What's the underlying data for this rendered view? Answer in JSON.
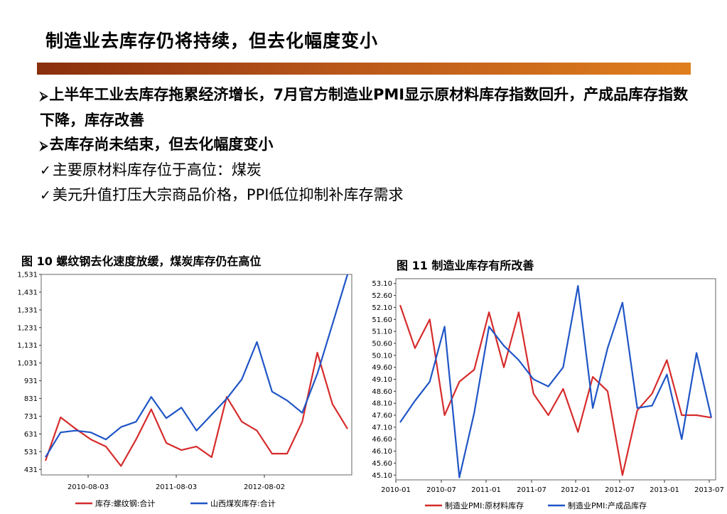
{
  "slide": {
    "title": "制造业去库存仍将持续，但去化幅度变小",
    "bullets": [
      {
        "mark": "⮚",
        "text": "上半年工业去库存拖累经济增长，7月官方制造业PMI显示原材料库存指数回升，产成品库存指数下降，库存改善",
        "bold": true
      },
      {
        "mark": "⮚",
        "text": "去库存尚未结束，但去化幅度变小",
        "bold": true
      },
      {
        "mark": "✓",
        "text": "主要原材料库存位于高位：煤炭",
        "bold": false
      },
      {
        "mark": "✓",
        "text": "美元升值打压大宗商品价格，PPI低位抑制补库存需求",
        "bold": false
      }
    ],
    "colors": {
      "red": "#d62b2b",
      "blue": "#1f55c6",
      "bar_start": "#8a2f0c",
      "bar_end": "#e07f1e"
    }
  },
  "chart_data": [
    {
      "type": "line",
      "title": "图 10 螺纹钢去化速度放缓，煤炭库存仍在高位",
      "x": [
        "2010-03",
        "2010-05",
        "2010-07",
        "2010-09",
        "2010-11",
        "2011-01",
        "2011-03",
        "2011-05",
        "2011-07",
        "2011-09",
        "2011-11",
        "2012-01",
        "2012-03",
        "2012-05",
        "2012-07",
        "2012-09",
        "2012-11",
        "2013-01",
        "2013-03",
        "2013-05",
        "2013-07"
      ],
      "x_ticks": [
        "2010-08-03",
        "2011-08-03",
        "2012-08-02"
      ],
      "y_ticks": [
        "1,531",
        "1,431",
        "1,331",
        "1,231",
        "1,131",
        "1,031",
        "931",
        "831",
        "731",
        "631",
        "531",
        "431"
      ],
      "ylim": [
        400,
        1531
      ],
      "series": [
        {
          "name": "库存:螺纹钢:合计",
          "color": "#d62b2b",
          "values": [
            480,
            725,
            660,
            600,
            560,
            450,
            600,
            770,
            580,
            540,
            560,
            500,
            840,
            700,
            650,
            520,
            520,
            700,
            1090,
            800,
            660
          ]
        },
        {
          "name": "山西煤炭库存:合计",
          "color": "#1f55c6",
          "values": [
            500,
            640,
            650,
            640,
            600,
            670,
            700,
            840,
            720,
            780,
            650,
            740,
            830,
            940,
            1150,
            870,
            820,
            750,
            970,
            1250,
            1531
          ]
        }
      ]
    },
    {
      "type": "line",
      "title": "图 11 制造业库存有所改善",
      "x": [
        "2010-01",
        "2010-03",
        "2010-05",
        "2010-07",
        "2010-09",
        "2010-11",
        "2011-01",
        "2011-03",
        "2011-05",
        "2011-07",
        "2011-09",
        "2011-11",
        "2012-01",
        "2012-03",
        "2012-05",
        "2012-07",
        "2012-09",
        "2012-11",
        "2013-01",
        "2013-03",
        "2013-05",
        "2013-07"
      ],
      "x_ticks": [
        "2010-01",
        "2010-07",
        "2011-01",
        "2011-07",
        "2012-01",
        "2012-07",
        "2013-01",
        "2013-07"
      ],
      "y_ticks": [
        "53.10",
        "52.60",
        "52.10",
        "51.60",
        "51.10",
        "50.60",
        "50.10",
        "49.60",
        "49.10",
        "48.60",
        "48.10",
        "47.60",
        "47.10",
        "46.60",
        "46.10",
        "45.60",
        "45.10"
      ],
      "ylim": [
        44.9,
        53.3
      ],
      "series": [
        {
          "name": "制造业PMI:原材料库存",
          "color": "#d62b2b",
          "values": [
            52.2,
            50.4,
            51.6,
            47.6,
            49.0,
            49.5,
            51.9,
            49.6,
            51.9,
            48.5,
            47.6,
            48.7,
            46.9,
            49.2,
            48.6,
            45.1,
            47.8,
            48.5,
            49.9,
            47.6,
            47.6,
            47.5
          ]
        },
        {
          "name": "制造业PMI:产成品库存",
          "color": "#1f55c6",
          "values": [
            47.3,
            48.2,
            49.0,
            51.3,
            45.0,
            47.7,
            51.3,
            50.5,
            49.9,
            49.1,
            48.8,
            49.6,
            53.0,
            47.9,
            50.4,
            52.3,
            47.9,
            48.0,
            49.3,
            46.6,
            50.2,
            47.5
          ]
        }
      ]
    }
  ]
}
